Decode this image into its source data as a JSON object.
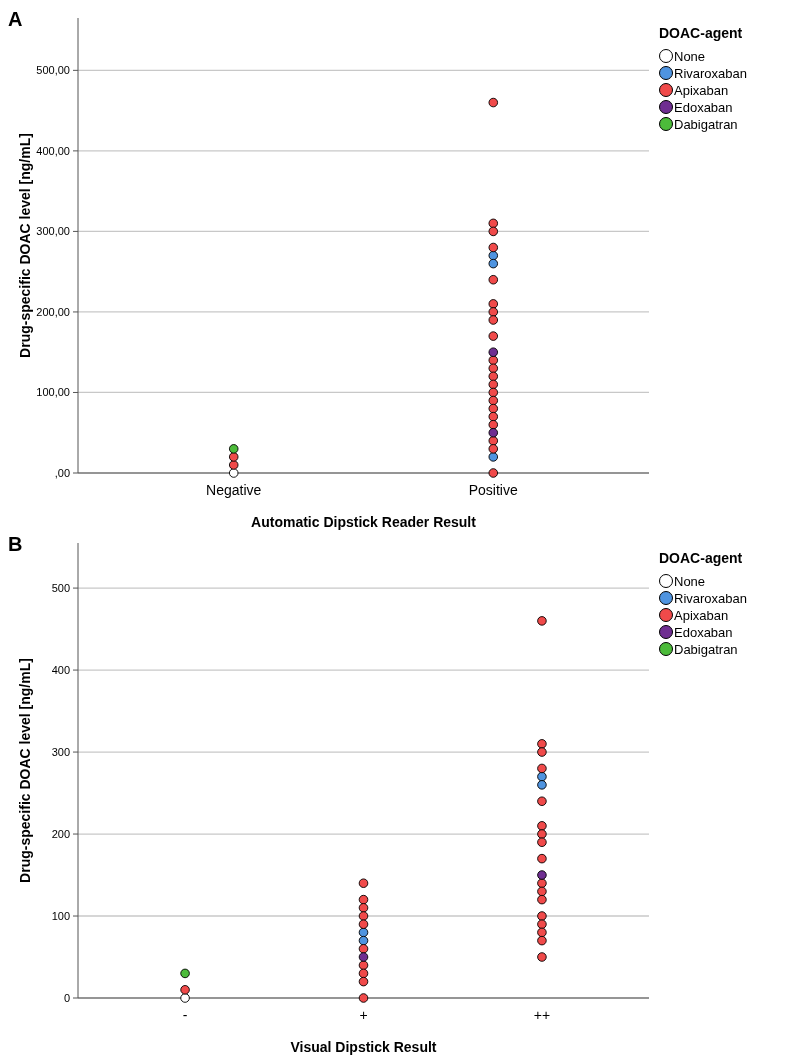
{
  "chart_data": [
    {
      "type": "scatter",
      "title": "A",
      "xlabel": "Automatic Dipstick Reader Result",
      "ylabel": "Drug-specific DOAC level [ng/mL]",
      "legend_title": "DOAC-agent",
      "legend": "right",
      "grid": "y",
      "marker": "circle",
      "categories": [
        "Negative",
        "Positive"
      ],
      "ylim": [
        0,
        565
      ],
      "yticks": [
        {
          "value": 0,
          "label": ",00"
        },
        {
          "value": 100,
          "label": "100,00"
        },
        {
          "value": 200,
          "label": "200,00"
        },
        {
          "value": 300,
          "label": "300,00"
        },
        {
          "value": 400,
          "label": "400,00"
        },
        {
          "value": 500,
          "label": "500,00"
        }
      ],
      "series": [
        {
          "name": "None",
          "color": "#ffffff",
          "x": [
            "Negative"
          ],
          "values": [
            0
          ]
        },
        {
          "name": "Rivaroxaban",
          "color": "#4f94e0",
          "x": [
            "Positive",
            "Positive",
            "Positive"
          ],
          "values": [
            270,
            260,
            20
          ]
        },
        {
          "name": "Apixaban",
          "color": "#f04a4a",
          "x": [
            "Negative",
            "Negative",
            "Positive",
            "Positive",
            "Positive",
            "Positive",
            "Positive",
            "Positive",
            "Positive",
            "Positive",
            "Positive",
            "Positive",
            "Positive",
            "Positive",
            "Positive",
            "Positive",
            "Positive",
            "Positive",
            "Positive",
            "Positive",
            "Positive",
            "Positive",
            "Positive"
          ],
          "values": [
            10,
            20,
            460,
            310,
            300,
            280,
            240,
            210,
            200,
            190,
            170,
            140,
            130,
            120,
            110,
            100,
            90,
            80,
            70,
            60,
            40,
            30,
            0
          ]
        },
        {
          "name": "Edoxaban",
          "color": "#6f2e91",
          "x": [
            "Positive",
            "Positive"
          ],
          "values": [
            150,
            50
          ]
        },
        {
          "name": "Dabigatran",
          "color": "#4cbb3a",
          "x": [
            "Negative"
          ],
          "values": [
            30
          ]
        }
      ]
    },
    {
      "type": "scatter",
      "title": "B",
      "xlabel": "Visual Dipstick Result",
      "ylabel": "Drug-specific DOAC level [ng/mL]",
      "legend_title": "DOAC-agent",
      "legend": "right",
      "grid": "y",
      "marker": "circle",
      "categories": [
        "-",
        "+",
        "++"
      ],
      "ylim": [
        0,
        555
      ],
      "yticks": [
        0,
        100,
        200,
        300,
        400,
        500
      ],
      "series": [
        {
          "name": "None",
          "color": "#ffffff",
          "x": [
            "-"
          ],
          "values": [
            0
          ]
        },
        {
          "name": "Rivaroxaban",
          "color": "#4f94e0",
          "x": [
            "+",
            "+",
            "++",
            "++"
          ],
          "values": [
            80,
            70,
            270,
            260
          ]
        },
        {
          "name": "Apixaban",
          "color": "#f04a4a",
          "x": [
            "-",
            "+",
            "+",
            "+",
            "+",
            "+",
            "+",
            "+",
            "+",
            "+",
            "+",
            "++",
            "++",
            "++",
            "++",
            "++",
            "++",
            "++",
            "++",
            "++",
            "++",
            "++",
            "++",
            "++",
            "++",
            "++",
            "++",
            "++"
          ],
          "values": [
            10,
            140,
            120,
            110,
            100,
            90,
            60,
            40,
            30,
            20,
            0,
            460,
            310,
            300,
            280,
            240,
            210,
            200,
            190,
            170,
            140,
            130,
            120,
            100,
            90,
            80,
            70,
            50
          ]
        },
        {
          "name": "Edoxaban",
          "color": "#6f2e91",
          "x": [
            "+",
            "++"
          ],
          "values": [
            50,
            150
          ]
        },
        {
          "name": "Dabigatran",
          "color": "#4cbb3a",
          "x": [
            "-"
          ],
          "values": [
            30
          ]
        }
      ]
    }
  ]
}
